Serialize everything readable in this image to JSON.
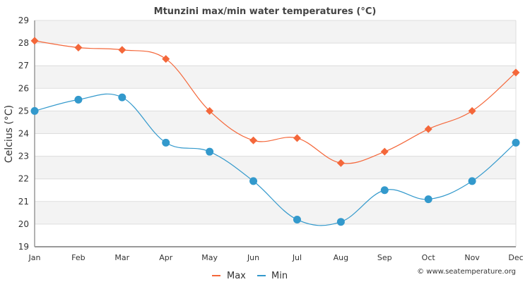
{
  "chart_data": {
    "type": "line",
    "title": "Mtunzini max/min water temperatures (°C)",
    "xlabel": "",
    "ylabel": "Celcius (°C)",
    "categories": [
      "Jan",
      "Feb",
      "Mar",
      "Apr",
      "May",
      "Jun",
      "Jul",
      "Aug",
      "Sep",
      "Oct",
      "Nov",
      "Dec"
    ],
    "ylim": [
      19,
      29
    ],
    "yticks": [
      "19",
      "20",
      "21",
      "22",
      "23",
      "24",
      "25",
      "26",
      "27",
      "28",
      "29"
    ],
    "grid": true,
    "legend": "bottom-center",
    "series": [
      {
        "name": "Max",
        "color": "#f4673a",
        "marker": "diamond",
        "values": [
          28.1,
          27.8,
          27.7,
          27.3,
          25.0,
          23.7,
          23.8,
          22.7,
          23.2,
          24.2,
          25.0,
          26.7
        ]
      },
      {
        "name": "Min",
        "color": "#3399cc",
        "marker": "circle",
        "values": [
          25.0,
          25.5,
          25.6,
          23.6,
          23.2,
          21.9,
          20.2,
          20.1,
          21.5,
          21.1,
          21.9,
          23.6
        ]
      }
    ],
    "credit": "© www.seatemperature.org"
  }
}
